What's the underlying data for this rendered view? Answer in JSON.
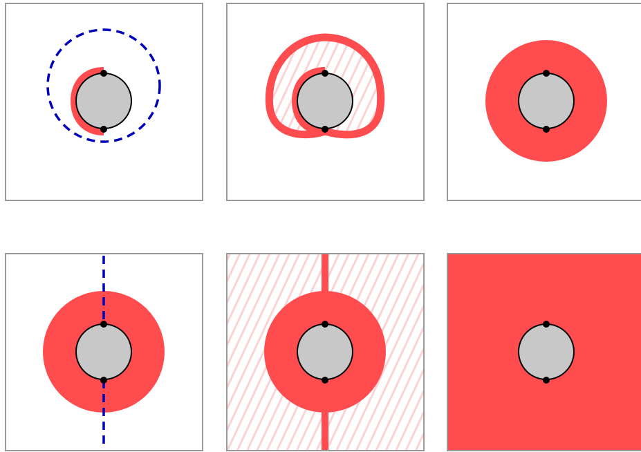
{
  "colors": {
    "background": "#ffffff",
    "frame": "#999999",
    "red": "#ff4d4f",
    "hatch": "#fbd3d4",
    "gray_disc": "#c8c8c8",
    "outline": "#000000",
    "blue_dashed": "#0000bb"
  },
  "panels": [
    {
      "id": "top-left",
      "content": [
        "crescent-region",
        "dashed-circle"
      ]
    },
    {
      "id": "top-middle",
      "content": [
        "hatched-cardioid-region",
        "cardioid-outline",
        "crescent-region"
      ]
    },
    {
      "id": "top-right",
      "content": [
        "red-disc"
      ]
    },
    {
      "id": "bottom-left",
      "content": [
        "red-disc",
        "dashed-vertical-line"
      ]
    },
    {
      "id": "bottom-middle",
      "content": [
        "hatched-background",
        "red-disc",
        "vertical-red-band"
      ]
    },
    {
      "id": "bottom-right",
      "content": [
        "red-filled-panel"
      ]
    }
  ]
}
